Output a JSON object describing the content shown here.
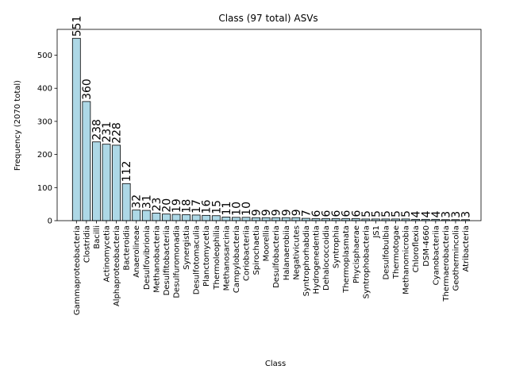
{
  "chart_data": {
    "type": "bar",
    "title": "Class (97 total) ASVs",
    "xlabel": "Class",
    "ylabel": "Frequency (2070 total)",
    "ylim": [
      0,
      578
    ],
    "yticks": [
      0,
      100,
      200,
      300,
      400,
      500
    ],
    "bar_color": "#add8e6",
    "edge_color": "#000000",
    "grid": false,
    "categories": [
      "Gammaproteobacteria",
      "Clostridia",
      "Bacilli",
      "Actinomycetia",
      "Alphaproteobacteria",
      "Bacteroidia",
      "Anaerolineae",
      "Desulfovibrionia",
      "Methanobacteria",
      "Desulfitobacteriia",
      "Desulfuromonadia",
      "Synergistia",
      "Desulfotomaculia",
      "Planctomycetia",
      "Thermoleophilia",
      "Methanosarcinia",
      "Campylobacteria",
      "Coriobacteriia",
      "Spirochaetia",
      "Moorellia",
      "Desulfobacteria",
      "Halanaerobiia",
      "Negativicutes",
      "Syntrophorhabdia",
      "Hydrogenedentia",
      "Dehalococcoidia",
      "Syntrophia",
      "Thermoplasmata",
      "Phycisphaerae",
      "Syntrophobacteria",
      "JS1",
      "Desulfobulbia",
      "Thermotogae",
      "Methanomicrobia",
      "Chloroflexia",
      "DSM-4660",
      "Cyanobacteriia",
      "Thermaerobacteria",
      "Geothermincolia",
      "Atribacteria"
    ],
    "values": [
      551,
      360,
      238,
      231,
      228,
      112,
      32,
      31,
      23,
      20,
      19,
      18,
      17,
      16,
      15,
      11,
      10,
      10,
      9,
      9,
      9,
      9,
      9,
      7,
      6,
      6,
      6,
      6,
      6,
      5,
      5,
      5,
      5,
      5,
      4,
      4,
      4,
      3,
      3,
      3
    ]
  }
}
